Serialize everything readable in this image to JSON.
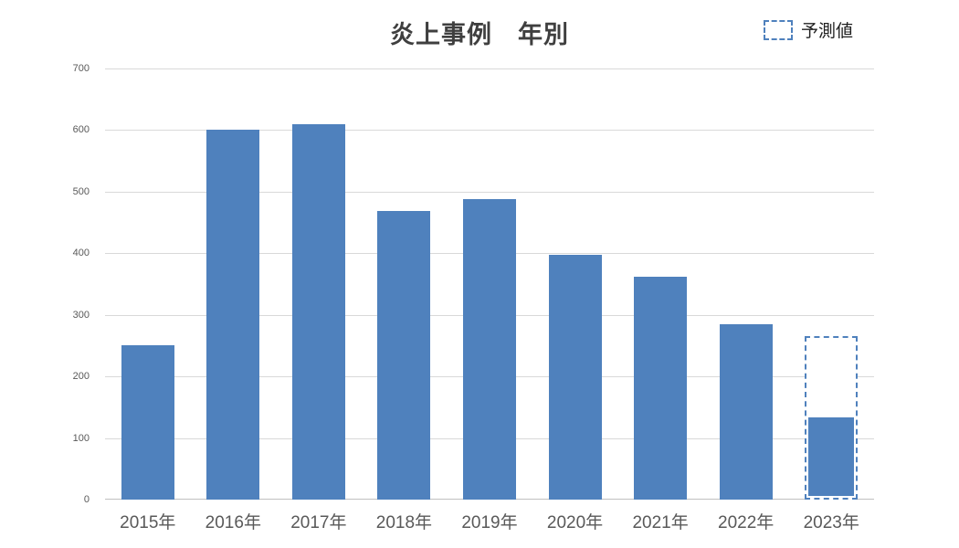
{
  "chart_data": {
    "type": "bar",
    "title": "炎上事例　年別",
    "categories": [
      "2015年",
      "2016年",
      "2017年",
      "2018年",
      "2019年",
      "2020年",
      "2021年",
      "2022年",
      "2023年"
    ],
    "values": [
      250,
      600,
      610,
      468,
      488,
      398,
      362,
      285,
      130
    ],
    "forecast": {
      "category": "2023年",
      "category_index": 8,
      "value": 265,
      "legend_label": "予測値"
    },
    "ylim": [
      0,
      700
    ],
    "ytick_step": 100,
    "ytick_labels": [
      "0",
      "100",
      "200",
      "300",
      "400",
      "500",
      "600",
      "700"
    ],
    "xlabel": "",
    "ylabel": "",
    "grid": true,
    "legend_position": "top-right",
    "bar_width_ratio": 0.62,
    "colors": {
      "bar": "#4F81BD",
      "forecast_border": "#4F81BD",
      "gridline": "#D9D9D9",
      "baseline": "#C0C0C0",
      "axis_text": "#595959",
      "title_text": "#3F3F3F",
      "legend_text": "#1F1F1F"
    }
  }
}
